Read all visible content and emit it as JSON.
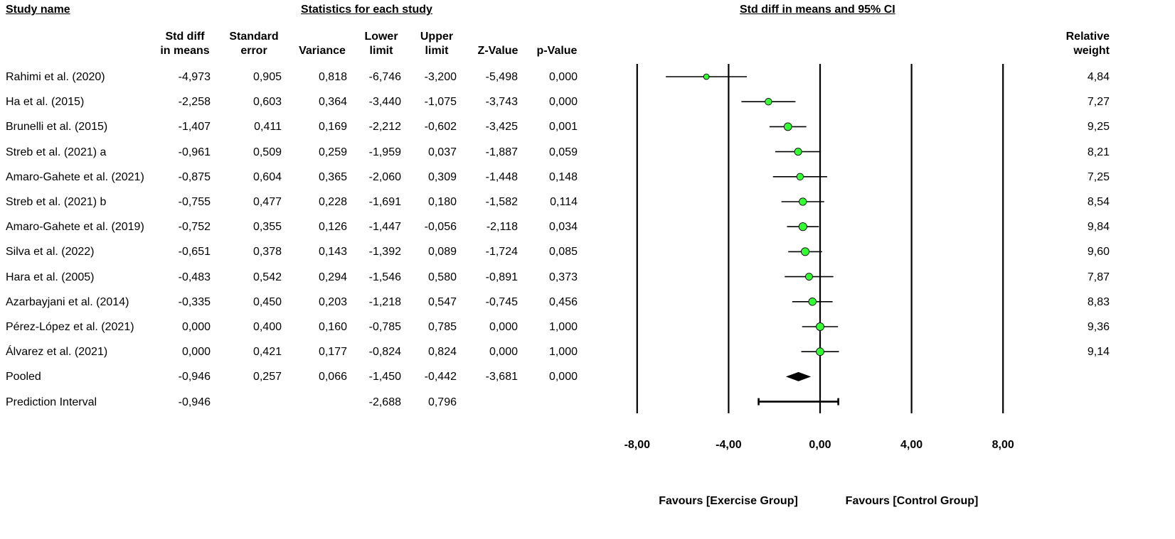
{
  "headers": {
    "study_name": "Study name",
    "stats_title": "Statistics for each study",
    "plot_title": "Std diff in means and 95% CI",
    "relative_weight": [
      "Relative",
      "weight"
    ]
  },
  "columns": [
    {
      "key": "smd",
      "line1": "Std diff",
      "line2": "in means"
    },
    {
      "key": "se",
      "line1": "Standard",
      "line2": "error"
    },
    {
      "key": "var",
      "line1": "",
      "line2": "Variance"
    },
    {
      "key": "lower",
      "line1": "Lower",
      "line2": "limit"
    },
    {
      "key": "upper",
      "line1": "Upper",
      "line2": "limit"
    },
    {
      "key": "z",
      "line1": "",
      "line2": "Z-Value"
    },
    {
      "key": "p",
      "line1": "",
      "line2": "p-Value"
    }
  ],
  "rows": [
    {
      "name": "Rahimi et al. (2020)",
      "cells": [
        "-4,973",
        "0,905",
        "0,818",
        "-6,746",
        "-3,200",
        "-5,498",
        "0,000"
      ],
      "weight": "4,84"
    },
    {
      "name": "Ha et al. (2015)",
      "cells": [
        "-2,258",
        "0,603",
        "0,364",
        "-3,440",
        "-1,075",
        "-3,743",
        "0,000"
      ],
      "weight": "7,27"
    },
    {
      "name": "Brunelli et al. (2015)",
      "cells": [
        "-1,407",
        "0,411",
        "0,169",
        "-2,212",
        "-0,602",
        "-3,425",
        "0,001"
      ],
      "weight": "9,25"
    },
    {
      "name": "Streb et al. (2021) a",
      "cells": [
        "-0,961",
        "0,509",
        "0,259",
        "-1,959",
        "0,037",
        "-1,887",
        "0,059"
      ],
      "weight": "8,21"
    },
    {
      "name": "Amaro-Gahete et al. (2021)",
      "cells": [
        "-0,875",
        "0,604",
        "0,365",
        "-2,060",
        "0,309",
        "-1,448",
        "0,148"
      ],
      "weight": "7,25"
    },
    {
      "name": "Streb et al. (2021) b",
      "cells": [
        "-0,755",
        "0,477",
        "0,228",
        "-1,691",
        "0,180",
        "-1,582",
        "0,114"
      ],
      "weight": "8,54"
    },
    {
      "name": "Amaro-Gahete et al. (2019)",
      "cells": [
        "-0,752",
        "0,355",
        "0,126",
        "-1,447",
        "-0,056",
        "-2,118",
        "0,034"
      ],
      "weight": "9,84"
    },
    {
      "name": "Silva et al. (2022)",
      "cells": [
        "-0,651",
        "0,378",
        "0,143",
        "-1,392",
        "0,089",
        "-1,724",
        "0,085"
      ],
      "weight": "9,60"
    },
    {
      "name": "Hara et al. (2005)",
      "cells": [
        "-0,483",
        "0,542",
        "0,294",
        "-1,546",
        "0,580",
        "-0,891",
        "0,373"
      ],
      "weight": "7,87"
    },
    {
      "name": "Azarbayjani et al. (2014)",
      "cells": [
        "-0,335",
        "0,450",
        "0,203",
        "-1,218",
        "0,547",
        "-0,745",
        "0,456"
      ],
      "weight": "8,83"
    },
    {
      "name": "Pérez-López et al. (2021)",
      "cells": [
        "0,000",
        "0,400",
        "0,160",
        "-0,785",
        "0,785",
        "0,000",
        "1,000"
      ],
      "weight": "9,36"
    },
    {
      "name": "Álvarez et al. (2021)",
      "cells": [
        "0,000",
        "0,421",
        "0,177",
        "-0,824",
        "0,824",
        "0,000",
        "1,000"
      ],
      "weight": "9,14"
    },
    {
      "name": "Pooled",
      "cells": [
        "-0,946",
        "0,257",
        "0,066",
        "-1,450",
        "-0,442",
        "-3,681",
        "0,000"
      ],
      "weight": ""
    },
    {
      "name": "Prediction Interval",
      "cells": [
        "-0,946",
        "",
        "",
        "-2,688",
        "0,796",
        "",
        ""
      ],
      "weight": ""
    }
  ],
  "chart_data": {
    "type": "forest",
    "title": "Std diff in means and 95% CI",
    "xlim": [
      -8,
      8
    ],
    "ticks": [
      -8,
      -4,
      0,
      4,
      8
    ],
    "tick_labels": [
      "-8,00",
      "-4,00",
      "0,00",
      "4,00",
      "8,00"
    ],
    "favours_left": "Favours [Exercise Group]",
    "favours_right": "Favours [Control Group]",
    "studies": [
      {
        "name": "Rahimi et al. (2020)",
        "est": -4.973,
        "lo": -6.746,
        "hi": -3.2,
        "weight": 4.84
      },
      {
        "name": "Ha et al. (2015)",
        "est": -2.258,
        "lo": -3.44,
        "hi": -1.075,
        "weight": 7.27
      },
      {
        "name": "Brunelli et al. (2015)",
        "est": -1.407,
        "lo": -2.212,
        "hi": -0.602,
        "weight": 9.25
      },
      {
        "name": "Streb et al. (2021) a",
        "est": -0.961,
        "lo": -1.959,
        "hi": 0.037,
        "weight": 8.21
      },
      {
        "name": "Amaro-Gahete et al. (2021)",
        "est": -0.875,
        "lo": -2.06,
        "hi": 0.309,
        "weight": 7.25
      },
      {
        "name": "Streb et al. (2021) b",
        "est": -0.755,
        "lo": -1.691,
        "hi": 0.18,
        "weight": 8.54
      },
      {
        "name": "Amaro-Gahete et al. (2019)",
        "est": -0.752,
        "lo": -1.447,
        "hi": -0.056,
        "weight": 9.84
      },
      {
        "name": "Silva et al. (2022)",
        "est": -0.651,
        "lo": -1.392,
        "hi": 0.089,
        "weight": 9.6
      },
      {
        "name": "Hara et al. (2005)",
        "est": -0.483,
        "lo": -1.546,
        "hi": 0.58,
        "weight": 7.87
      },
      {
        "name": "Azarbayjani et al. (2014)",
        "est": -0.335,
        "lo": -1.218,
        "hi": 0.547,
        "weight": 8.83
      },
      {
        "name": "Pérez-López et al. (2021)",
        "est": 0.0,
        "lo": -0.785,
        "hi": 0.785,
        "weight": 9.36
      },
      {
        "name": "Álvarez et al. (2021)",
        "est": 0.0,
        "lo": -0.824,
        "hi": 0.824,
        "weight": 9.14
      }
    ],
    "pooled": {
      "est": -0.946,
      "lo": -1.45,
      "hi": -0.442
    },
    "prediction_interval": {
      "lo": -2.688,
      "hi": 0.796
    },
    "marker_color": "#33ff33"
  }
}
